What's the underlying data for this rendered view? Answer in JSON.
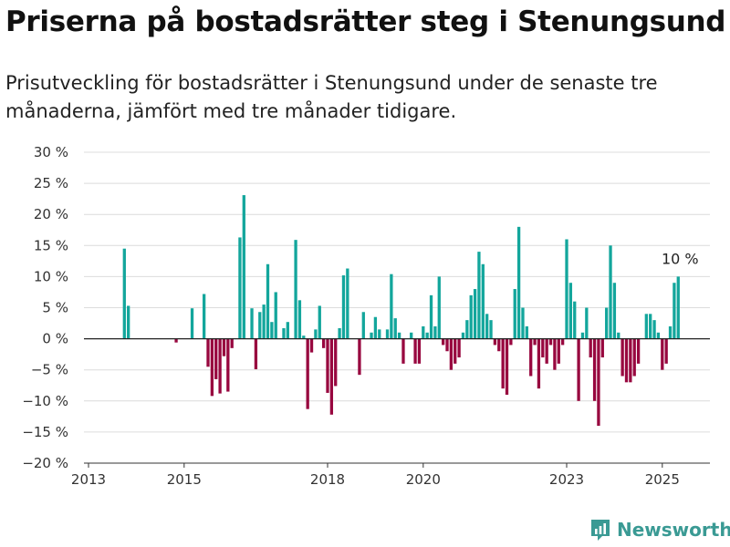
{
  "header": {
    "title": "Priserna på bostadsrätter steg i Stenungsund",
    "subtitle": "Prisutveckling för bostadsrätter i Stenungsund under de senaste tre månaderna, jämfört med tre månader tidigare."
  },
  "footer": {
    "brand": "Newsworthy"
  },
  "colors": {
    "positive": "#13a69c",
    "negative": "#98073f",
    "brand": "#3a9a94"
  },
  "chart_data": {
    "type": "bar",
    "title": "Priserna på bostadsrätter steg i Stenungsund",
    "subtitle": "Prisutveckling för bostadsrätter i Stenungsund under de senaste tre månaderna, jämfört med tre månader tidigare.",
    "xlabel": "",
    "ylabel": "",
    "x_ticks": [
      "2013",
      "2015",
      "2018",
      "2020",
      "2023",
      "2025"
    ],
    "y_ticks": [
      "30 %",
      "25 %",
      "20 %",
      "15 %",
      "10 %",
      "5 %",
      "0 %",
      "−5 %",
      "−10 %",
      "−15 %",
      "−20 %"
    ],
    "ylim": [
      -20,
      30
    ],
    "grid": true,
    "annotation": {
      "text": "10 %",
      "x": "2025-06"
    },
    "series": [
      {
        "name": "",
        "points": [
          {
            "x": "2013-10",
            "y": 14.5
          },
          {
            "x": "2013-11",
            "y": 5.3
          },
          {
            "x": "2014-11",
            "y": -0.6
          },
          {
            "x": "2015-03",
            "y": 4.9
          },
          {
            "x": "2015-06",
            "y": 7.2
          },
          {
            "x": "2015-07",
            "y": -4.5
          },
          {
            "x": "2015-08",
            "y": -9.2
          },
          {
            "x": "2015-09",
            "y": -6.5
          },
          {
            "x": "2015-10",
            "y": -8.8
          },
          {
            "x": "2015-11",
            "y": -2.8
          },
          {
            "x": "2015-12",
            "y": -8.5
          },
          {
            "x": "2016-01",
            "y": -1.5
          },
          {
            "x": "2016-03",
            "y": 16.3
          },
          {
            "x": "2016-04",
            "y": 23.1
          },
          {
            "x": "2016-06",
            "y": 4.9
          },
          {
            "x": "2016-07",
            "y": -4.9
          },
          {
            "x": "2016-08",
            "y": 4.3
          },
          {
            "x": "2016-09",
            "y": 5.5
          },
          {
            "x": "2016-10",
            "y": 12.0
          },
          {
            "x": "2016-11",
            "y": 2.7
          },
          {
            "x": "2016-12",
            "y": 7.5
          },
          {
            "x": "2017-02",
            "y": 1.7
          },
          {
            "x": "2017-03",
            "y": 2.7
          },
          {
            "x": "2017-05",
            "y": 15.9
          },
          {
            "x": "2017-06",
            "y": 6.2
          },
          {
            "x": "2017-07",
            "y": 0.5
          },
          {
            "x": "2017-08",
            "y": -11.3
          },
          {
            "x": "2017-09",
            "y": -2.2
          },
          {
            "x": "2017-10",
            "y": 1.5
          },
          {
            "x": "2017-11",
            "y": 5.3
          },
          {
            "x": "2017-12",
            "y": -1.5
          },
          {
            "x": "2018-01",
            "y": -8.7
          },
          {
            "x": "2018-02",
            "y": -12.2
          },
          {
            "x": "2018-03",
            "y": -7.6
          },
          {
            "x": "2018-04",
            "y": 1.7
          },
          {
            "x": "2018-05",
            "y": 10.2
          },
          {
            "x": "2018-06",
            "y": 11.3
          },
          {
            "x": "2018-09",
            "y": -5.8
          },
          {
            "x": "2018-10",
            "y": 4.3
          },
          {
            "x": "2018-12",
            "y": 1.0
          },
          {
            "x": "2019-01",
            "y": 3.5
          },
          {
            "x": "2019-02",
            "y": 1.5
          },
          {
            "x": "2019-04",
            "y": 1.5
          },
          {
            "x": "2019-05",
            "y": 10.4
          },
          {
            "x": "2019-06",
            "y": 3.3
          },
          {
            "x": "2019-07",
            "y": 1.0
          },
          {
            "x": "2019-08",
            "y": -4.0
          },
          {
            "x": "2019-10",
            "y": 1.0
          },
          {
            "x": "2019-11",
            "y": -4.0
          },
          {
            "x": "2019-12",
            "y": -4.0
          },
          {
            "x": "2020-01",
            "y": 2.0
          },
          {
            "x": "2020-02",
            "y": 1.0
          },
          {
            "x": "2020-03",
            "y": 7.0
          },
          {
            "x": "2020-04",
            "y": 2.0
          },
          {
            "x": "2020-05",
            "y": 10.0
          },
          {
            "x": "2020-06",
            "y": -1.0
          },
          {
            "x": "2020-07",
            "y": -2.0
          },
          {
            "x": "2020-08",
            "y": -5.0
          },
          {
            "x": "2020-09",
            "y": -4.0
          },
          {
            "x": "2020-10",
            "y": -3.0
          },
          {
            "x": "2020-11",
            "y": 1.0
          },
          {
            "x": "2020-12",
            "y": 3.0
          },
          {
            "x": "2021-01",
            "y": 7.0
          },
          {
            "x": "2021-02",
            "y": 8.0
          },
          {
            "x": "2021-03",
            "y": 14.0
          },
          {
            "x": "2021-04",
            "y": 12.0
          },
          {
            "x": "2021-05",
            "y": 4.0
          },
          {
            "x": "2021-06",
            "y": 3.0
          },
          {
            "x": "2021-07",
            "y": -1.0
          },
          {
            "x": "2021-08",
            "y": -2.0
          },
          {
            "x": "2021-09",
            "y": -8.0
          },
          {
            "x": "2021-10",
            "y": -9.0
          },
          {
            "x": "2021-11",
            "y": -1.0
          },
          {
            "x": "2021-12",
            "y": 8.0
          },
          {
            "x": "2022-01",
            "y": 18.0
          },
          {
            "x": "2022-02",
            "y": 5.0
          },
          {
            "x": "2022-03",
            "y": 2.0
          },
          {
            "x": "2022-04",
            "y": -6.0
          },
          {
            "x": "2022-05",
            "y": -1.0
          },
          {
            "x": "2022-06",
            "y": -8.0
          },
          {
            "x": "2022-07",
            "y": -3.0
          },
          {
            "x": "2022-08",
            "y": -4.0
          },
          {
            "x": "2022-09",
            "y": -1.0
          },
          {
            "x": "2022-10",
            "y": -5.0
          },
          {
            "x": "2022-11",
            "y": -4.0
          },
          {
            "x": "2022-12",
            "y": -1.0
          },
          {
            "x": "2023-01",
            "y": 16.0
          },
          {
            "x": "2023-02",
            "y": 9.0
          },
          {
            "x": "2023-03",
            "y": 6.0
          },
          {
            "x": "2023-04",
            "y": -10.0
          },
          {
            "x": "2023-05",
            "y": 1.0
          },
          {
            "x": "2023-06",
            "y": 5.0
          },
          {
            "x": "2023-07",
            "y": -3.0
          },
          {
            "x": "2023-08",
            "y": -10.0
          },
          {
            "x": "2023-09",
            "y": -14.0
          },
          {
            "x": "2023-10",
            "y": -3.0
          },
          {
            "x": "2023-11",
            "y": 5.0
          },
          {
            "x": "2023-12",
            "y": 15.0
          },
          {
            "x": "2024-01",
            "y": 9.0
          },
          {
            "x": "2024-02",
            "y": 1.0
          },
          {
            "x": "2024-03",
            "y": -6.0
          },
          {
            "x": "2024-04",
            "y": -7.0
          },
          {
            "x": "2024-05",
            "y": -7.0
          },
          {
            "x": "2024-06",
            "y": -6.0
          },
          {
            "x": "2024-07",
            "y": -4.0
          },
          {
            "x": "2024-09",
            "y": 4.0
          },
          {
            "x": "2024-10",
            "y": 4.0
          },
          {
            "x": "2024-11",
            "y": 3.0
          },
          {
            "x": "2024-12",
            "y": 1.0
          },
          {
            "x": "2025-01",
            "y": -5.0
          },
          {
            "x": "2025-02",
            "y": -4.0
          },
          {
            "x": "2025-03",
            "y": 2.0
          },
          {
            "x": "2025-04",
            "y": 9.0
          },
          {
            "x": "2025-05",
            "y": 10.0
          }
        ]
      }
    ]
  }
}
